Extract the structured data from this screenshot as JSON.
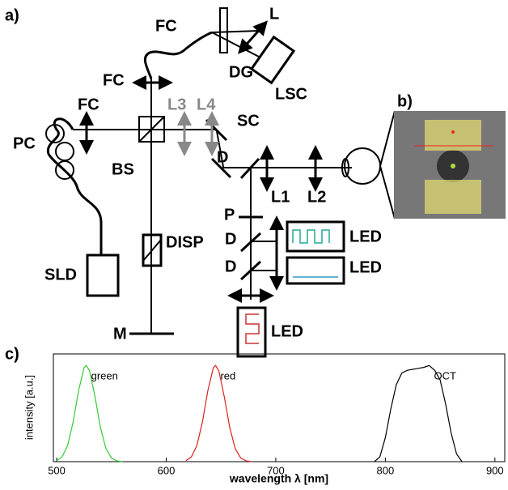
{
  "panels": {
    "a": "a)",
    "b": "b)",
    "c": "c)"
  },
  "labels": [
    "FC",
    "L",
    "DG",
    "LSC",
    "FC",
    "FC",
    "L3",
    "L4",
    "SC",
    "PC",
    "BS",
    "D",
    "L1",
    "L2",
    "P",
    "D",
    "D",
    "LED",
    "LED",
    "LED",
    "SLD",
    "DISP",
    "M"
  ],
  "chart_data": {
    "type": "line",
    "xlabel": "wavelength λ [nm]",
    "ylabel": "intensity [a.u.]",
    "xlim": [
      497,
      909
    ],
    "xticks": [
      500,
      600,
      700,
      800,
      900
    ],
    "ylim": [
      0,
      1.12
    ],
    "series": [
      {
        "name": "green",
        "color": "#33cc33",
        "x": [
          500,
          505,
          510,
          515,
          520,
          525,
          527,
          530,
          535,
          540,
          545,
          550,
          555,
          560
        ],
        "values": [
          0.011,
          0.05,
          0.168,
          0.411,
          0.739,
          0.976,
          1,
          0.946,
          0.674,
          0.353,
          0.135,
          0.038,
          0.008,
          0.001
        ]
      },
      {
        "name": "red",
        "color": "#dd2222",
        "x": [
          618,
          623,
          628,
          633,
          638,
          643,
          645,
          648,
          653,
          658,
          663,
          668,
          673,
          678
        ],
        "values": [
          0.011,
          0.05,
          0.168,
          0.411,
          0.739,
          0.976,
          1,
          0.946,
          0.674,
          0.353,
          0.135,
          0.038,
          0.008,
          0.001
        ]
      },
      {
        "name": "OCT",
        "color": "#000000",
        "x": [
          790,
          795,
          800,
          805,
          810,
          815,
          820,
          825,
          830,
          835,
          840,
          845,
          850,
          855,
          860,
          865,
          870
        ],
        "values": [
          0,
          0.05,
          0.25,
          0.55,
          0.8,
          0.92,
          0.95,
          0.96,
          0.97,
          0.98,
          1,
          0.95,
          0.85,
          0.6,
          0.3,
          0.08,
          0
        ]
      }
    ]
  }
}
